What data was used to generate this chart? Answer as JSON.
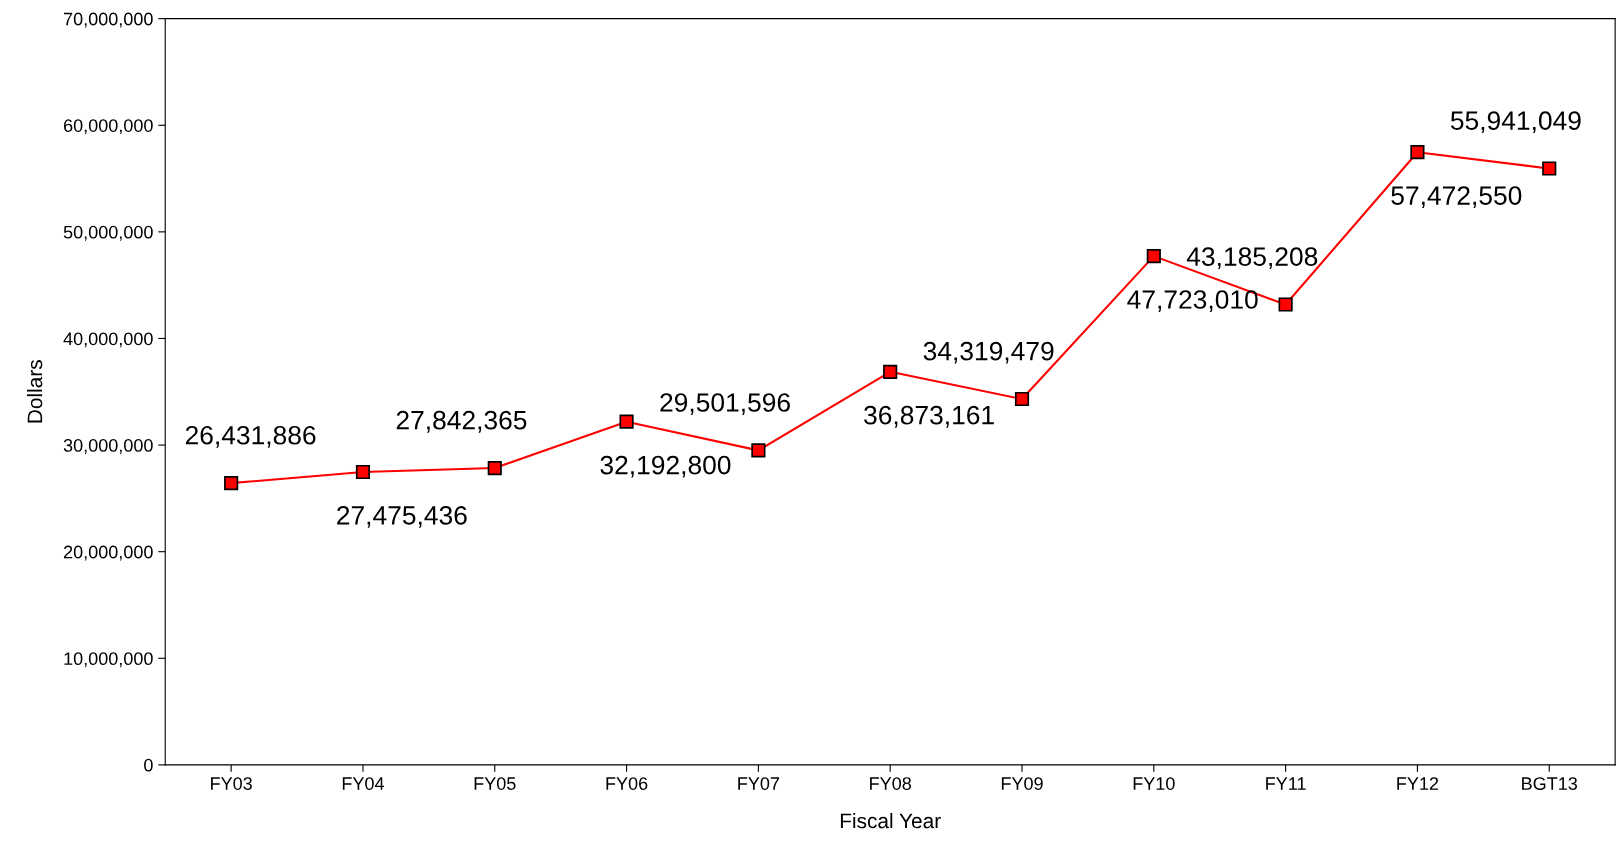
{
  "chart_data": {
    "type": "line",
    "xlabel": "Fiscal Year",
    "ylabel": "Dollars",
    "categories": [
      "FY03",
      "FY04",
      "FY05",
      "FY06",
      "FY07",
      "FY08",
      "FY09",
      "FY10",
      "FY11",
      "FY12",
      "BGT13"
    ],
    "series": [
      {
        "color": "#ff0000",
        "values": [
          26431886,
          27475436,
          27842365,
          32192800,
          29501596,
          36873161,
          34319479,
          47723010,
          43185208,
          57472550,
          55941049
        ],
        "value_labels": [
          "26,431,886",
          "27,475,436",
          "27,842,365",
          "32,192,800",
          "29,501,596",
          "36,873,161",
          "34,319,479",
          "47,723,010",
          "43,185,208",
          "57,472,550",
          "55,941,049"
        ]
      }
    ],
    "ylim": [
      0,
      70000000
    ],
    "yticks": [
      0,
      {
        "value": 10000000,
        "label": "10,000,000"
      },
      {
        "value": 20000000,
        "label": "20,000,000"
      },
      {
        "value": 30000000,
        "label": "30,000,000"
      },
      {
        "value": 40000000,
        "label": "40,000,000"
      },
      {
        "value": 50000000,
        "label": "50,000,000"
      },
      {
        "value": 60000000,
        "label": "60,000,000"
      },
      {
        "value": 70000000,
        "label": "70,000,000"
      }
    ],
    "marker": "square",
    "line_style": "solid",
    "grid": false
  }
}
